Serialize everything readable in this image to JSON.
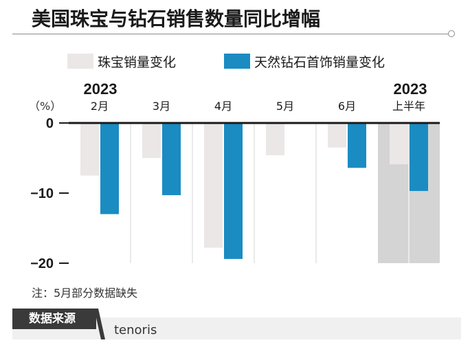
{
  "title": "美国珠宝与钻石销售数量同比增幅",
  "legend": {
    "series1": "珠宝销量变化",
    "series2": "天然钻石首饰销量变化"
  },
  "colors": {
    "series1": "#ebe7e7",
    "series2": "#1a8cc2",
    "highlight_bg": "#d4d4d4"
  },
  "chart_data": {
    "type": "bar",
    "year_left": "2023",
    "year_right": "2023",
    "unit_label": "（%）",
    "categories": [
      "2月",
      "3月",
      "4月",
      "5月",
      "6月",
      "上半年"
    ],
    "series": [
      {
        "name": "珠宝销量变化",
        "values": [
          -7.5,
          -5,
          -17.8,
          -4.6,
          -3.5,
          -5.9
        ]
      },
      {
        "name": "天然钻石首饰销量变化",
        "values": [
          -13,
          -10.3,
          -19.4,
          null,
          -6.4,
          -9.7
        ]
      }
    ],
    "ylim": [
      -20,
      0
    ],
    "yticks": [
      0,
      -10,
      -20
    ],
    "ytick_labels": [
      "0",
      "−10",
      "−20"
    ],
    "highlight_category": "上半年"
  },
  "note": "注：5月部分数据缺失",
  "source": {
    "label": "数据来源",
    "value": "tenoris"
  }
}
